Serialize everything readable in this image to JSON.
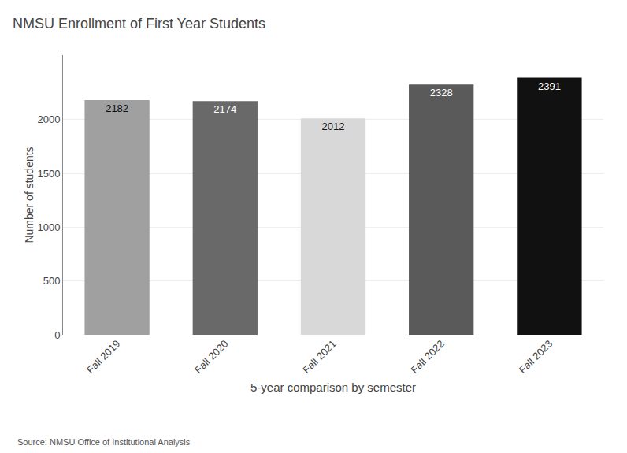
{
  "chart_data": {
    "type": "bar",
    "title": "NMSU Enrollment of First Year Students",
    "xlabel": "5-year comparison by semester",
    "ylabel": "Number of students",
    "annotations": [
      "Source: NMSU Office of Institutional Analysis"
    ],
    "categories": [
      "Fall 2019",
      "Fall 2020",
      "Fall 2021",
      "Fall 2022",
      "Fall 2023"
    ],
    "values": [
      2182,
      2174,
      2012,
      2328,
      2391
    ],
    "colors": [
      "#a0a0a0",
      "#696969",
      "#d8d8d8",
      "#5a5a5a",
      "#111111"
    ],
    "ylim": [
      0,
      2600
    ],
    "yticks": [
      0,
      500,
      1000,
      1500,
      2000
    ],
    "grid": true,
    "data_labels": true
  }
}
